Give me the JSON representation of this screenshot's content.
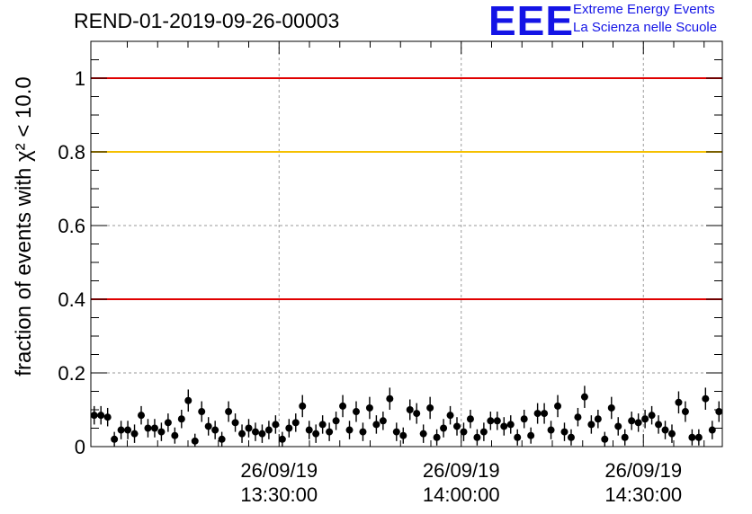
{
  "header": {
    "title": "REND-01-2019-09-26-00003",
    "logo_mark": "EEE",
    "logo_line1": "Extreme Energy Events",
    "logo_line2": "La Scienza nelle Scuole"
  },
  "colors": {
    "points": "#000000",
    "line_red": "#e00000",
    "line_yellow": "#f5c000",
    "grid": "#9a9a9a",
    "logo": "#1414e6"
  },
  "chart_data": {
    "type": "scatter",
    "title": "REND-01-2019-09-26-00003",
    "ylabel": "fraction of events with χ² < 10.0",
    "xlabel": "",
    "xlim": [
      "12:59",
      "14:43"
    ],
    "ylim": [
      0,
      1.1
    ],
    "y_ticks": [
      "0",
      "0.2",
      "0.4",
      "0.6",
      "0.8",
      "1"
    ],
    "x_ticks": [
      {
        "x": "13:30",
        "date": "26/09/19",
        "time": "13:30:00"
      },
      {
        "x": "14:00",
        "date": "26/09/19",
        "time": "14:00:00"
      },
      {
        "x": "14:30",
        "date": "26/09/19",
        "time": "14:30:00"
      }
    ],
    "grid": true,
    "reference_lines": [
      {
        "y": 1.0,
        "color": "red"
      },
      {
        "y": 0.8,
        "color": "yellow"
      },
      {
        "y": 0.4,
        "color": "red"
      }
    ],
    "series": [
      {
        "values": [
          0.085,
          0.085,
          0.08,
          0.02,
          0.045,
          0.045,
          0.035,
          0.085,
          0.05,
          0.05,
          0.04,
          0.065,
          0.03,
          0.075,
          0.125,
          0.015,
          0.095,
          0.055,
          0.045,
          0.02,
          0.095,
          0.065,
          0.035,
          0.05,
          0.04,
          0.035,
          0.045,
          0.06,
          0.02,
          0.05,
          0.065,
          0.11,
          0.045,
          0.035,
          0.06,
          0.04,
          0.07,
          0.11,
          0.045,
          0.095,
          0.04,
          0.105,
          0.06,
          0.07,
          0.13,
          0.04,
          0.03,
          0.1,
          0.09,
          0.035,
          0.105,
          0.025,
          0.05,
          0.085,
          0.055,
          0.04,
          0.075,
          0.025,
          0.04,
          0.07,
          0.07,
          0.055,
          0.06,
          0.025,
          0.075,
          0.03,
          0.09,
          0.09,
          0.045,
          0.11,
          0.04,
          0.025,
          0.08,
          0.135,
          0.06,
          0.075,
          0.02,
          0.105,
          0.055,
          0.025,
          0.07,
          0.065,
          0.075,
          0.085,
          0.06,
          0.045,
          0.035,
          0.12,
          0.095,
          0.025,
          0.025,
          0.13,
          0.045,
          0.095
        ],
        "errors": [
          0.025,
          0.025,
          0.025,
          0.02,
          0.025,
          0.025,
          0.025,
          0.025,
          0.025,
          0.025,
          0.025,
          0.025,
          0.022,
          0.025,
          0.03,
          0.02,
          0.028,
          0.025,
          0.025,
          0.02,
          0.028,
          0.025,
          0.025,
          0.025,
          0.025,
          0.025,
          0.025,
          0.025,
          0.02,
          0.025,
          0.025,
          0.03,
          0.025,
          0.025,
          0.025,
          0.025,
          0.025,
          0.03,
          0.025,
          0.028,
          0.025,
          0.03,
          0.025,
          0.025,
          0.03,
          0.025,
          0.022,
          0.028,
          0.028,
          0.025,
          0.03,
          0.022,
          0.025,
          0.025,
          0.025,
          0.025,
          0.025,
          0.022,
          0.025,
          0.025,
          0.025,
          0.025,
          0.025,
          0.022,
          0.025,
          0.022,
          0.028,
          0.028,
          0.025,
          0.03,
          0.025,
          0.022,
          0.025,
          0.03,
          0.025,
          0.025,
          0.02,
          0.03,
          0.025,
          0.022,
          0.025,
          0.025,
          0.025,
          0.025,
          0.025,
          0.025,
          0.025,
          0.03,
          0.028,
          0.022,
          0.022,
          0.03,
          0.025,
          0.028
        ]
      }
    ]
  }
}
